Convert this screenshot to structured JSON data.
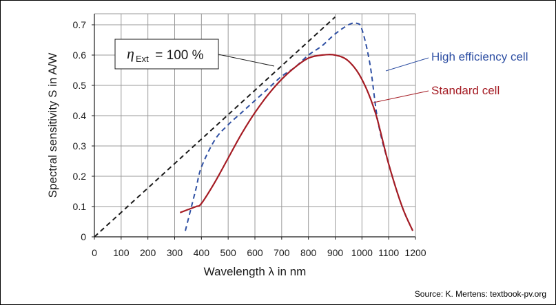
{
  "chart_data": {
    "type": "line",
    "xlabel": "Wavelength λ in nm",
    "ylabel": "Spectral sensitivity S in A/W",
    "xlim": [
      0,
      1200
    ],
    "ylim": [
      0,
      0.7
    ],
    "xticks": [
      "0",
      "100",
      "200",
      "300",
      "400",
      "500",
      "600",
      "700",
      "800",
      "900",
      "1000",
      "1100",
      "1200"
    ],
    "yticks": [
      "0",
      "0.1",
      "0.2",
      "0.3",
      "0.4",
      "0.5",
      "0.6",
      "0.7"
    ],
    "grid": true,
    "series": [
      {
        "name": "η_Ext = 100 %",
        "style": "dashed",
        "color": "#1a1a1a",
        "x": [
          0,
          900
        ],
        "y": [
          0,
          0.726
        ]
      },
      {
        "name": "High efficiency cell",
        "style": "dashed",
        "color": "#2e4fa3",
        "x": [
          340,
          360,
          380,
          400,
          450,
          500,
          550,
          600,
          650,
          700,
          750,
          800,
          850,
          900,
          950,
          980,
          1000,
          1030,
          1060,
          1100,
          1150,
          1190
        ],
        "y": [
          0.02,
          0.09,
          0.16,
          0.23,
          0.32,
          0.37,
          0.41,
          0.45,
          0.49,
          0.53,
          0.56,
          0.6,
          0.63,
          0.67,
          0.7,
          0.705,
          0.685,
          0.57,
          0.38,
          0.24,
          0.1,
          0.02
        ]
      },
      {
        "name": "Standard cell",
        "style": "solid",
        "color": "#a51c24",
        "x": [
          320,
          350,
          380,
          400,
          450,
          500,
          550,
          600,
          650,
          700,
          750,
          800,
          850,
          900,
          950,
          1000,
          1050,
          1100,
          1150,
          1190
        ],
        "y": [
          0.08,
          0.09,
          0.1,
          0.11,
          0.18,
          0.26,
          0.34,
          0.41,
          0.47,
          0.52,
          0.56,
          0.59,
          0.6,
          0.6,
          0.58,
          0.52,
          0.41,
          0.24,
          0.1,
          0.02
        ]
      }
    ],
    "annotations": {
      "eta_label": "η",
      "eta_sub": "Ext",
      "eta_value": " = 100 %",
      "high_label": "High efficiency cell",
      "standard_label": "Standard cell"
    },
    "colors": {
      "grid": "#9a9a9a",
      "axis": "#1a1a1a",
      "high": "#2e4fa3",
      "standard": "#a51c24",
      "ideal": "#1a1a1a"
    }
  },
  "source": "Source: K. Mertens: textbook-pv.org"
}
